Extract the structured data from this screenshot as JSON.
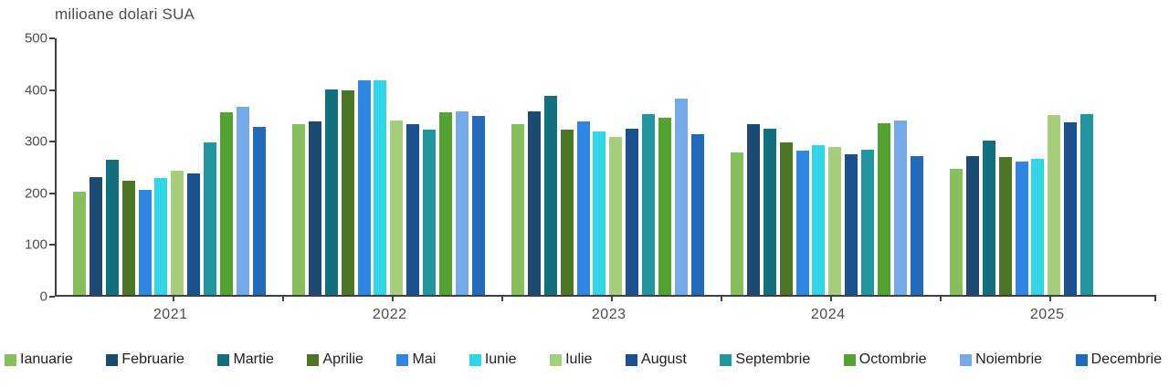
{
  "chart": {
    "title": "milioane dolari SUA"
  },
  "chart_data": {
    "type": "bar",
    "title": "milioane dolari SUA",
    "ylabel": "milioane dolari SUA",
    "xlabel": "",
    "ylim": [
      0,
      500
    ],
    "yticks": [
      0,
      100,
      200,
      300,
      400,
      500
    ],
    "grid": false,
    "legend_position": "bottom",
    "axis_color": "#404040",
    "categories": [
      "2021",
      "2022",
      "2023",
      "2024",
      "2025"
    ],
    "series": [
      {
        "name": "Ianuarie",
        "color": "#86C05A",
        "values": [
          200,
          331,
          330,
          275,
          243
        ]
      },
      {
        "name": "Februarie",
        "color": "#1B4A73",
        "values": [
          228,
          336,
          355,
          330,
          269
        ]
      },
      {
        "name": "Martie",
        "color": "#11707B",
        "values": [
          261,
          397,
          386,
          322,
          299
        ]
      },
      {
        "name": "Aprilie",
        "color": "#4D7526",
        "values": [
          220,
          396,
          319,
          295,
          266
        ]
      },
      {
        "name": "Mai",
        "color": "#2F86E3",
        "values": [
          203,
          416,
          336,
          279,
          258
        ]
      },
      {
        "name": "Iunie",
        "color": "#2FD5E8",
        "values": [
          227,
          415,
          317,
          289,
          264
        ]
      },
      {
        "name": "Iulie",
        "color": "#A6CE7C",
        "values": [
          241,
          338,
          306,
          286,
          348
        ]
      },
      {
        "name": "August",
        "color": "#1A5090",
        "values": [
          235,
          330,
          322,
          272,
          334
        ]
      },
      {
        "name": "Septembrie",
        "color": "#1F96A0",
        "values": [
          295,
          319,
          349,
          281,
          349
        ]
      },
      {
        "name": "Octombrie",
        "color": "#54A22F",
        "values": [
          354,
          353,
          342,
          332,
          null
        ]
      },
      {
        "name": "Noiembrie",
        "color": "#74AAEB",
        "values": [
          364,
          356,
          380,
          338,
          null
        ]
      },
      {
        "name": "Decembrie",
        "color": "#1F6ABF",
        "values": [
          325,
          347,
          311,
          269,
          null
        ]
      }
    ]
  }
}
